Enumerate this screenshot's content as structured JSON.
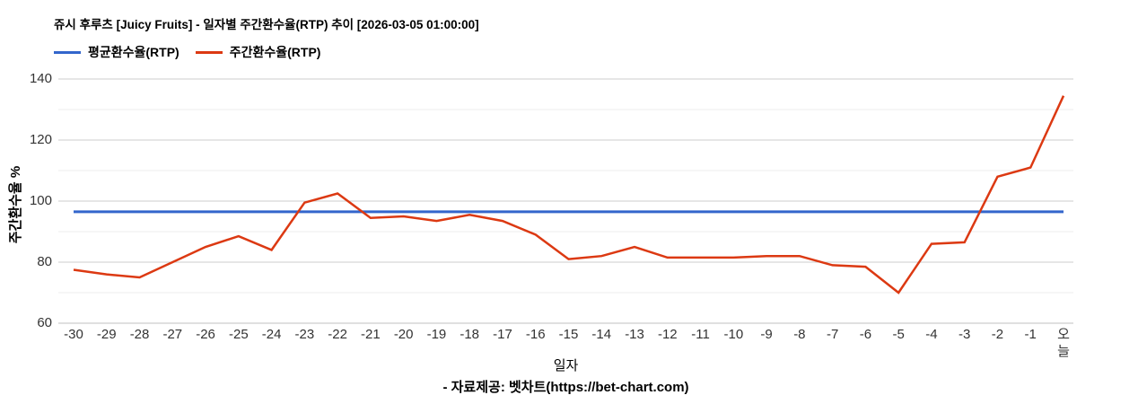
{
  "header": {
    "title": "쥬시 후루츠 [Juicy Fruits] - 일자별 주간환수율(RTP) 추이 [2026-03-05 01:00:00]"
  },
  "legend": {
    "average": {
      "label": "평균환수율(RTP)",
      "color": "#3366cc"
    },
    "weekly": {
      "label": "주간환수율(RTP)",
      "color": "#dc3912"
    }
  },
  "axes": {
    "y_title": "주간환수율 %",
    "x_title": "일자",
    "y_tick_labels": [
      "60",
      "80",
      "100",
      "120",
      "140"
    ]
  },
  "footer": {
    "source": "- 자료제공: 벳차트(https://bet-chart.com)"
  },
  "chart_data": {
    "type": "line",
    "title": "쥬시 후루츠 [Juicy Fruits] - 일자별 주간환수율(RTP) 추이 [2026-03-05 01:00:00]",
    "xlabel": "일자",
    "ylabel": "주간환수율 %",
    "ylim": [
      60,
      140
    ],
    "y_major_ticks": [
      60,
      80,
      100,
      120,
      140
    ],
    "y_minor_ticks": [
      70,
      90,
      110,
      130
    ],
    "grid": true,
    "legend_position": "top-left",
    "x": [
      "-30",
      "-29",
      "-28",
      "-27",
      "-26",
      "-25",
      "-24",
      "-23",
      "-22",
      "-21",
      "-20",
      "-19",
      "-18",
      "-17",
      "-16",
      "-15",
      "-14",
      "-13",
      "-12",
      "-11",
      "-10",
      "-9",
      "-8",
      "-7",
      "-6",
      "-5",
      "-4",
      "-3",
      "-2",
      "-1",
      "오늘"
    ],
    "series": [
      {
        "name": "평균환수율(RTP)",
        "color": "#3366cc",
        "constant_value": 96.5,
        "values": [
          96.5,
          96.5,
          96.5,
          96.5,
          96.5,
          96.5,
          96.5,
          96.5,
          96.5,
          96.5,
          96.5,
          96.5,
          96.5,
          96.5,
          96.5,
          96.5,
          96.5,
          96.5,
          96.5,
          96.5,
          96.5,
          96.5,
          96.5,
          96.5,
          96.5,
          96.5,
          96.5,
          96.5,
          96.5,
          96.5,
          96.5
        ]
      },
      {
        "name": "주간환수율(RTP)",
        "color": "#dc3912",
        "values": [
          77.5,
          76,
          75,
          80,
          85,
          88.5,
          84,
          99.5,
          102.5,
          94.5,
          95,
          93.5,
          95.5,
          93.5,
          89,
          81,
          82,
          85,
          81.5,
          81.5,
          81.5,
          82,
          82,
          79,
          78.5,
          70,
          86,
          86.5,
          108,
          111,
          134.5
        ]
      }
    ],
    "grid_colors": {
      "major": "#cccccc",
      "minor": "#ececec",
      "baseline": "#c2c2c2"
    }
  }
}
